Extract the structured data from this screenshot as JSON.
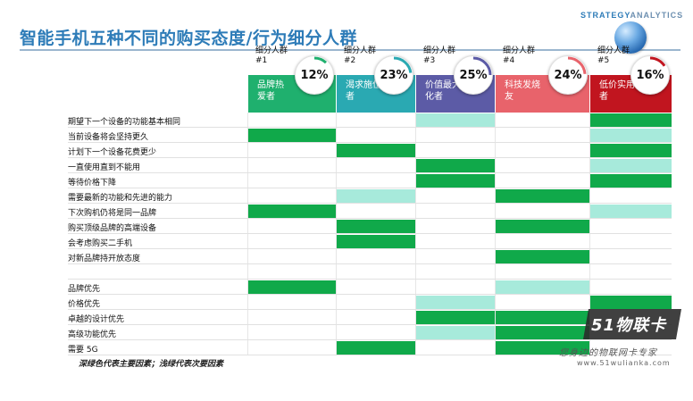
{
  "title": "智能手机五种不同的购买态度/行为细分人群",
  "brand": {
    "part1": "STRATEGY",
    "part2": "ANALYTICS"
  },
  "colors": {
    "dark": "#10a94a",
    "light": "#a7eadb"
  },
  "segments": [
    {
      "name": "细分人群",
      "number": "#1",
      "label_lines": [
        "品牌热",
        "爱者"
      ],
      "share": "12%",
      "share_value": 12,
      "color": "#1fb06e"
    },
    {
      "name": "细分人群",
      "number": "#2",
      "label_lines": [
        "渴求施位",
        "者"
      ],
      "share": "23%",
      "share_value": 23,
      "color": "#2aa9b2"
    },
    {
      "name": "细分人群",
      "number": "#3",
      "label_lines": [
        "价值最大",
        "化者"
      ],
      "share": "25%",
      "share_value": 25,
      "color": "#5c5ba6"
    },
    {
      "name": "细分人群",
      "number": "#4",
      "label_lines": [
        "科技发烧",
        "友"
      ],
      "share": "24%",
      "share_value": 24,
      "color": "#e8636b"
    },
    {
      "name": "细分人群",
      "number": "#5",
      "label_lines": [
        "低价实用",
        "者"
      ],
      "share": "16%",
      "share_value": 16,
      "color": "#c1151f"
    }
  ],
  "rows": [
    {
      "label": "期望下一个设备的功能基本相同",
      "cells": [
        "none",
        "none",
        "light",
        "none",
        "dark"
      ]
    },
    {
      "label": "当前设备将会坚持更久",
      "cells": [
        "dark",
        "none",
        "none",
        "none",
        "light"
      ]
    },
    {
      "label": "计划下一个设备花费更少",
      "cells": [
        "none",
        "dark",
        "none",
        "none",
        "dark"
      ]
    },
    {
      "label": "一直使用直到不能用",
      "cells": [
        "none",
        "none",
        "dark",
        "none",
        "light"
      ]
    },
    {
      "label": "等待价格下降",
      "cells": [
        "none",
        "none",
        "dark",
        "none",
        "dark"
      ]
    },
    {
      "label": "需要最新的功能和先进的能力",
      "cells": [
        "none",
        "light",
        "none",
        "dark",
        "none"
      ]
    },
    {
      "label": "下次购机仍将是同一品牌",
      "cells": [
        "dark",
        "none",
        "none",
        "none",
        "light"
      ]
    },
    {
      "label": "购买顶级品牌的高端设备",
      "cells": [
        "none",
        "dark",
        "none",
        "dark",
        "none"
      ]
    },
    {
      "label": "会考虑购买二手机",
      "cells": [
        "none",
        "dark",
        "none",
        "none",
        "none"
      ]
    },
    {
      "label": "对新品牌持开放态度",
      "cells": [
        "none",
        "none",
        "none",
        "dark",
        "none"
      ]
    },
    {
      "label": "",
      "cells": [
        "none",
        "none",
        "none",
        "none",
        "none"
      ]
    },
    {
      "label": "品牌优先",
      "cells": [
        "dark",
        "none",
        "none",
        "light",
        "none"
      ]
    },
    {
      "label": "价格优先",
      "cells": [
        "none",
        "none",
        "light",
        "none",
        "dark"
      ]
    },
    {
      "label": "卓越的设计优先",
      "cells": [
        "none",
        "none",
        "dark",
        "dark",
        "none"
      ]
    },
    {
      "label": "高级功能优先",
      "cells": [
        "none",
        "none",
        "light",
        "dark",
        "none"
      ]
    },
    {
      "label": "需要 5G",
      "cells": [
        "none",
        "dark",
        "none",
        "dark",
        "none"
      ]
    }
  ],
  "footnote": "深绿色代表主要因素；浅绿代表次要因素",
  "watermark": {
    "logo": "51物联卡",
    "tagline": "您身边的物联网卡专家",
    "url": "www.51wulianka.com"
  }
}
